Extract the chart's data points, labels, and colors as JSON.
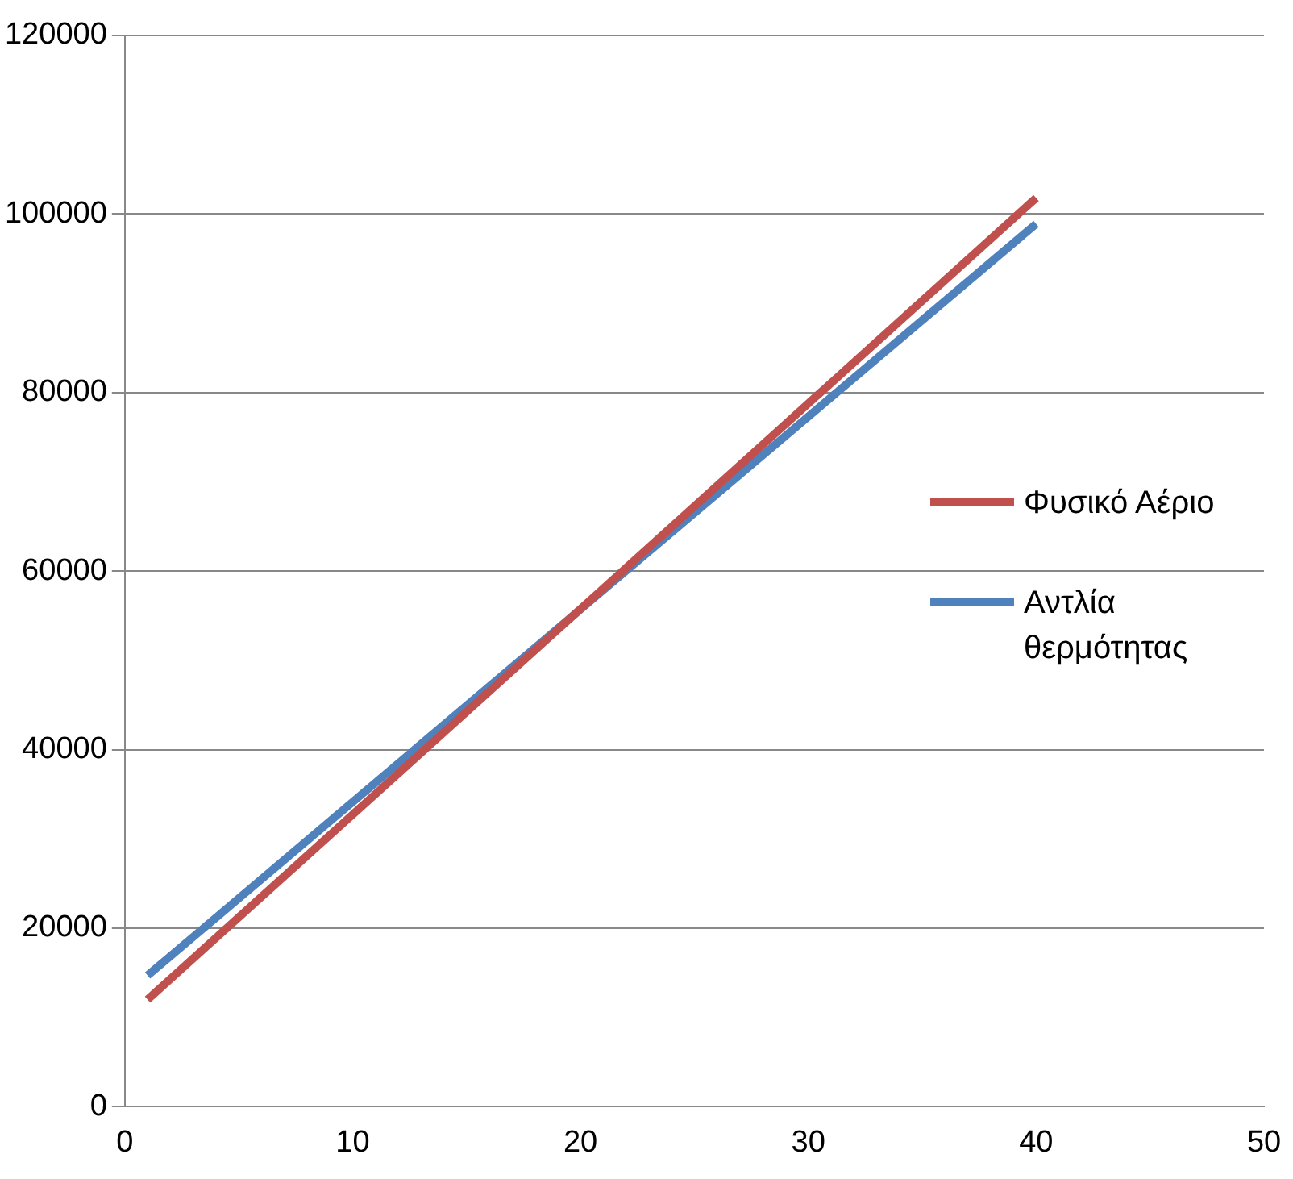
{
  "chart_data": {
    "type": "line",
    "x": [
      1,
      40
    ],
    "series": [
      {
        "name": "Φυσικό Αέριο",
        "color": "#c0504d",
        "values": [
          12000,
          101800
        ]
      },
      {
        "name": "Αντλία θερμότητας",
        "color": "#4f81bd",
        "values": [
          14700,
          98900
        ]
      }
    ],
    "xlim": [
      0,
      50
    ],
    "xticks": [
      0,
      10,
      20,
      30,
      40,
      50
    ],
    "ylim": [
      0,
      120000
    ],
    "yticks": [
      0,
      20000,
      40000,
      60000,
      80000,
      100000,
      120000
    ],
    "grid": "y",
    "legend": "right",
    "marker": "none",
    "line_style": "solid"
  }
}
